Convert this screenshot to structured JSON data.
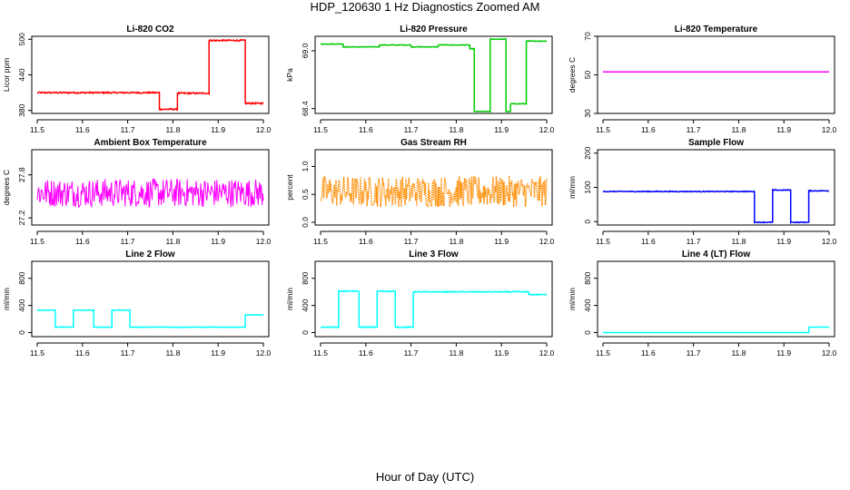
{
  "figure": {
    "title": "HDP_120630  1 Hz Diagnostics Zoomed AM",
    "xlabel": "Hour of Day (UTC)"
  },
  "chart_data": [
    {
      "type": "line",
      "title": "Li-820 CO2",
      "xlabel": "",
      "ylabel": "Licor ppm",
      "color": "#ff0000",
      "xlim": [
        11.5,
        12.0
      ],
      "xticks": [
        "11.5",
        "11.6",
        "11.7",
        "11.8",
        "11.9",
        "12.0"
      ],
      "ylim": [
        375,
        505
      ],
      "yticks": [
        380,
        440,
        500
      ],
      "ytick_labels": [
        "380",
        "440",
        "500"
      ],
      "noise": 1.2,
      "segments": [
        {
          "x": [
            11.5,
            11.77
          ],
          "y": 410
        },
        {
          "x": [
            11.77,
            11.81
          ],
          "y": 382
        },
        {
          "x": [
            11.81,
            11.88
          ],
          "y": 409
        },
        {
          "x": [
            11.88,
            11.96
          ],
          "y": 498
        },
        {
          "x": [
            11.96,
            12.0
          ],
          "y": 392
        }
      ]
    },
    {
      "type": "line",
      "title": "Li-820 Pressure",
      "xlabel": "",
      "ylabel": "kPa",
      "color": "#00cc00",
      "xlim": [
        11.5,
        12.0
      ],
      "xticks": [
        "11.5",
        "11.6",
        "11.7",
        "11.8",
        "11.9",
        "12.0"
      ],
      "ylim": [
        68.35,
        69.15
      ],
      "yticks": [
        68.4,
        69.0
      ],
      "ytick_labels": [
        "68.4",
        "69.0"
      ],
      "noise": 0.003,
      "segments": [
        {
          "x": [
            11.5,
            11.55
          ],
          "y": 69.07
        },
        {
          "x": [
            11.55,
            11.63
          ],
          "y": 69.04
        },
        {
          "x": [
            11.63,
            11.7
          ],
          "y": 69.06
        },
        {
          "x": [
            11.7,
            11.76
          ],
          "y": 69.04
        },
        {
          "x": [
            11.76,
            11.83
          ],
          "y": 69.06
        },
        {
          "x": [
            11.83,
            11.84
          ],
          "y": 69.02
        },
        {
          "x": [
            11.84,
            11.875
          ],
          "y": 68.37
        },
        {
          "x": [
            11.875,
            11.91
          ],
          "y": 69.12
        },
        {
          "x": [
            11.91,
            11.92
          ],
          "y": 68.37
        },
        {
          "x": [
            11.92,
            11.955
          ],
          "y": 68.45
        },
        {
          "x": [
            11.955,
            11.96
          ],
          "y": 69.1
        },
        {
          "x": [
            11.96,
            12.0
          ],
          "y": 69.1
        }
      ]
    },
    {
      "type": "line",
      "title": "Li-820 Temperature",
      "xlabel": "",
      "ylabel": "degrees C",
      "color": "#ff00ff",
      "xlim": [
        11.5,
        12.0
      ],
      "xticks": [
        "11.5",
        "11.6",
        "11.7",
        "11.8",
        "11.9",
        "12.0"
      ],
      "ylim": [
        30,
        70
      ],
      "yticks": [
        30,
        50,
        70
      ],
      "ytick_labels": [
        "30",
        "50",
        "70"
      ],
      "noise": 0,
      "segments": [
        {
          "x": [
            11.5,
            12.0
          ],
          "y": 51.5
        }
      ]
    },
    {
      "type": "line",
      "title": "Ambient Box Temperature",
      "xlabel": "",
      "ylabel": "degrees C",
      "color": "#ff00ff",
      "xlim": [
        11.5,
        12.0
      ],
      "xticks": [
        "11.5",
        "11.6",
        "11.7",
        "11.8",
        "11.9",
        "12.0"
      ],
      "ylim": [
        27.1,
        28.15
      ],
      "yticks": [
        27.2,
        27.8
      ],
      "ytick_labels": [
        "27.2",
        "27.8"
      ],
      "noise": 0.2,
      "segments": [
        {
          "x": [
            11.5,
            12.0
          ],
          "y": 27.55
        }
      ]
    },
    {
      "type": "line",
      "title": "Gas Stream RH",
      "xlabel": "",
      "ylabel": "percent",
      "color": "#ff8c00",
      "xlim": [
        11.5,
        12.0
      ],
      "xticks": [
        "11.5",
        "11.6",
        "11.7",
        "11.8",
        "11.9",
        "12.0"
      ],
      "ylim": [
        -0.05,
        1.3
      ],
      "yticks": [
        0.0,
        0.5,
        1.0
      ],
      "ytick_labels": [
        "0.0",
        "0.5",
        "1.0"
      ],
      "noise": 0.28,
      "dotted": true,
      "segments": [
        {
          "x": [
            11.5,
            12.0
          ],
          "y": 0.55
        }
      ]
    },
    {
      "type": "line",
      "title": "Sample Flow",
      "xlabel": "",
      "ylabel": "ml/min",
      "color": "#0000ff",
      "xlim": [
        11.5,
        12.0
      ],
      "xticks": [
        "11.5",
        "11.6",
        "11.7",
        "11.8",
        "11.9",
        "12.0"
      ],
      "ylim": [
        -10,
        210
      ],
      "yticks": [
        0,
        100,
        200
      ],
      "ytick_labels": [
        "0",
        "100",
        "200"
      ],
      "noise": 1.2,
      "segments": [
        {
          "x": [
            11.5,
            11.835
          ],
          "y": 88
        },
        {
          "x": [
            11.835,
            11.875
          ],
          "y": -2
        },
        {
          "x": [
            11.875,
            11.915
          ],
          "y": 92
        },
        {
          "x": [
            11.915,
            11.955
          ],
          "y": -2
        },
        {
          "x": [
            11.955,
            12.0
          ],
          "y": 90
        }
      ]
    },
    {
      "type": "line",
      "title": "Line 2 Flow",
      "xlabel": "",
      "ylabel": "ml/min",
      "color": "#00ffff",
      "xlim": [
        11.5,
        12.0
      ],
      "xticks": [
        "11.5",
        "11.6",
        "11.7",
        "11.8",
        "11.9",
        "12.0"
      ],
      "ylim": [
        -60,
        1050
      ],
      "yticks": [
        0,
        400,
        800
      ],
      "ytick_labels": [
        "0",
        "400",
        "800"
      ],
      "noise": 4,
      "segments": [
        {
          "x": [
            11.5,
            11.54
          ],
          "y": 330
        },
        {
          "x": [
            11.54,
            11.58
          ],
          "y": 80
        },
        {
          "x": [
            11.58,
            11.625
          ],
          "y": 330
        },
        {
          "x": [
            11.625,
            11.665
          ],
          "y": 80
        },
        {
          "x": [
            11.665,
            11.705
          ],
          "y": 330
        },
        {
          "x": [
            11.705,
            11.96
          ],
          "y": 80
        },
        {
          "x": [
            11.96,
            12.0
          ],
          "y": 260
        }
      ]
    },
    {
      "type": "line",
      "title": "Line 3 Flow",
      "xlabel": "",
      "ylabel": "ml/min",
      "color": "#00ffff",
      "xlim": [
        11.5,
        12.0
      ],
      "xticks": [
        "11.5",
        "11.6",
        "11.7",
        "11.8",
        "11.9",
        "12.0"
      ],
      "ylim": [
        -60,
        1050
      ],
      "yticks": [
        0,
        400,
        800
      ],
      "ytick_labels": [
        "0",
        "400",
        "800"
      ],
      "noise": 6,
      "segments": [
        {
          "x": [
            11.5,
            11.54
          ],
          "y": 80
        },
        {
          "x": [
            11.54,
            11.585
          ],
          "y": 610
        },
        {
          "x": [
            11.585,
            11.625
          ],
          "y": 80
        },
        {
          "x": [
            11.625,
            11.665
          ],
          "y": 610
        },
        {
          "x": [
            11.665,
            11.705
          ],
          "y": 80
        },
        {
          "x": [
            11.705,
            11.96
          ],
          "y": 600
        },
        {
          "x": [
            11.96,
            12.0
          ],
          "y": 560
        }
      ]
    },
    {
      "type": "line",
      "title": "Line 4 (LT) Flow",
      "xlabel": "",
      "ylabel": "ml/min",
      "color": "#00ffff",
      "xlim": [
        11.5,
        12.0
      ],
      "xticks": [
        "11.5",
        "11.6",
        "11.7",
        "11.8",
        "11.9",
        "12.0"
      ],
      "ylim": [
        -60,
        1050
      ],
      "yticks": [
        0,
        400,
        800
      ],
      "ytick_labels": [
        "0",
        "400",
        "800"
      ],
      "noise": 0,
      "segments": [
        {
          "x": [
            11.5,
            11.955
          ],
          "y": 0
        },
        {
          "x": [
            11.955,
            12.0
          ],
          "y": 80
        }
      ]
    }
  ]
}
